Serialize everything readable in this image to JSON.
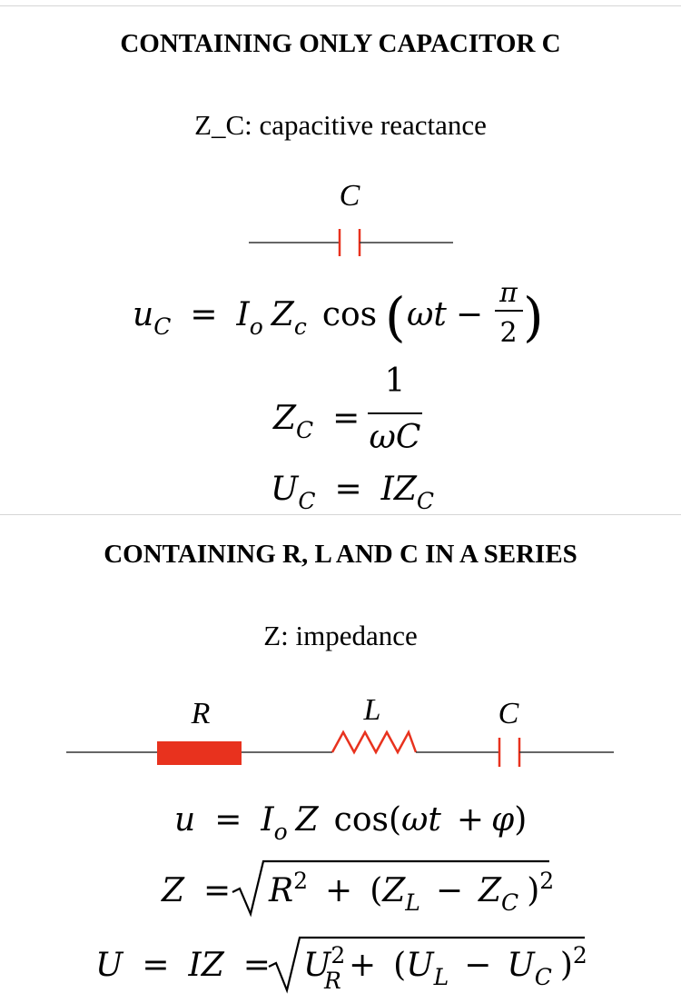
{
  "section1": {
    "heading": "CONTAINING ONLY CAPACITOR C",
    "subtitle": "Z_C: capacitive reactance",
    "circuit_label_c": "C",
    "formulas": [
      "u_C = I_o Z_c cos(ωt − π/2)",
      "Z_C = 1/(ωC)",
      "U_C = IZ_C"
    ]
  },
  "section2": {
    "heading": "CONTAINING R, L AND C IN A SERIES",
    "subtitle": "Z: impedance",
    "circuit_label_r": "R",
    "circuit_label_l": "L",
    "circuit_label_c": "C",
    "formulas": [
      "u = I_o Z cos(ωt + φ)",
      "Z = √(R² + (Z_L − Z_C)²)",
      "U = IZ = √(U_R² + (U_L − U_C)²)"
    ]
  },
  "colors": {
    "component_red": "#e8321e",
    "wire": "#333333",
    "divider": "#d6d6d6"
  }
}
